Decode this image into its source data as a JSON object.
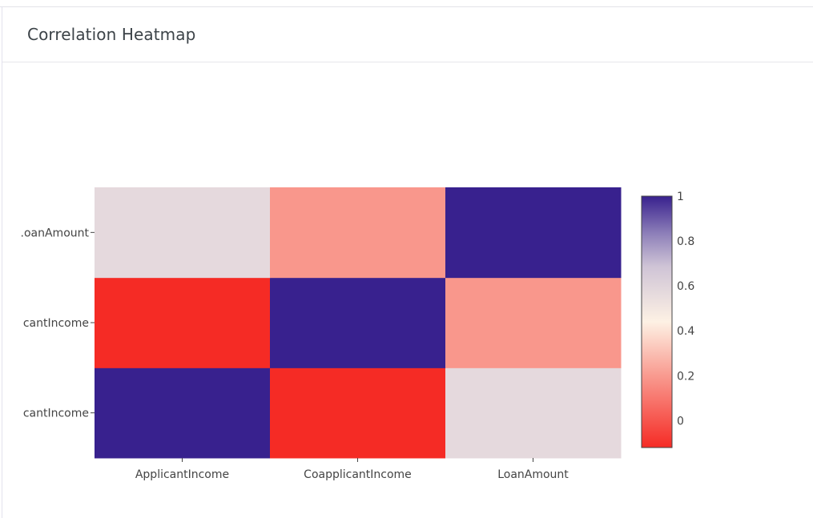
{
  "card": {
    "title": "Correlation Heatmap"
  },
  "chart_data": {
    "type": "heatmap",
    "x": [
      "ApplicantIncome",
      "CoapplicantIncome",
      "LoanAmount"
    ],
    "y": [
      "ApplicantIncome",
      "CoapplicantIncome",
      "LoanAmount"
    ],
    "y_tick_labels_visible": [
      "cantIncome",
      "cantIncome",
      ".oanAmount"
    ],
    "z": [
      [
        1.0,
        -0.12,
        0.57
      ],
      [
        -0.12,
        1.0,
        0.19
      ],
      [
        0.57,
        0.19,
        1.0
      ]
    ],
    "zmin": -0.12,
    "zmax": 1.0,
    "colorscale": [
      [
        0.0,
        "#f52b25"
      ],
      [
        0.3,
        "#f9a095"
      ],
      [
        0.5,
        "#fdf1e4"
      ],
      [
        0.72,
        "#cfc4d6"
      ],
      [
        0.85,
        "#8e80b9"
      ],
      [
        1.0,
        "#38218e"
      ]
    ],
    "colorbar": {
      "ticks": [
        0,
        0.2,
        0.4,
        0.6,
        0.8,
        1
      ],
      "tick_labels": [
        "0",
        "0.2",
        "0.4",
        "0.6",
        "0.8",
        "1"
      ]
    }
  }
}
